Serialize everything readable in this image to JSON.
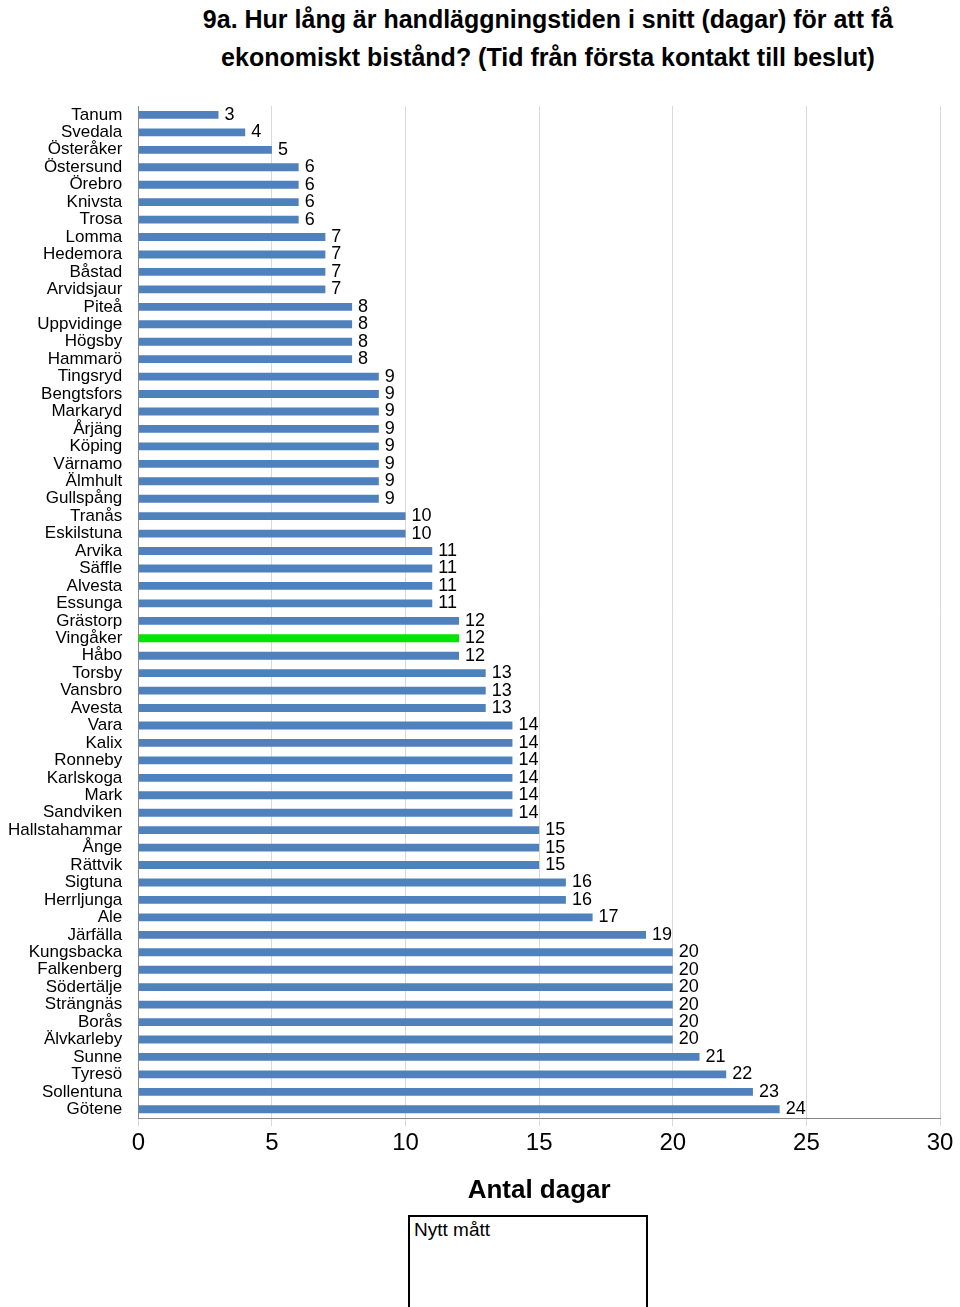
{
  "chart_data": {
    "type": "bar",
    "orientation": "horizontal",
    "title": "9a. Hur lång är handläggningstiden i snitt (dagar) för att få ekonomiskt bistånd? (Tid från första kontakt till beslut)",
    "x_label": "Antal dagar",
    "annotation": "Nytt mått",
    "categories": [
      "Tanum",
      "Svedala",
      "Österåker",
      "Östersund",
      "Örebro",
      "Knivsta",
      "Trosa",
      "Lomma",
      "Hedemora",
      "Båstad",
      "Arvidsjaur",
      "Piteå",
      "Uppvidinge",
      "Högsby",
      "Hammarö",
      "Tingsryd",
      "Bengtsfors",
      "Markaryd",
      "Årjäng",
      "Köping",
      "Värnamo",
      "Älmhult",
      "Gullspång",
      "Tranås",
      "Eskilstuna",
      "Arvika",
      "Säffle",
      "Alvesta",
      "Essunga",
      "Grästorp",
      "Vingåker",
      "Håbo",
      "Torsby",
      "Vansbro",
      "Avesta",
      "Vara",
      "Kalix",
      "Ronneby",
      "Karlskoga",
      "Mark",
      "Sandviken",
      "Hallstahammar",
      "Ånge",
      "Rättvik",
      "Sigtuna",
      "Herrljunga",
      "Ale",
      "Järfälla",
      "Kungsbacka",
      "Falkenberg",
      "Södertälje",
      "Strängnäs",
      "Borås",
      "Älvkarleby",
      "Sunne",
      "Tyresö",
      "Sollentuna",
      "Götene"
    ],
    "values": [
      3,
      4,
      5,
      6,
      6,
      6,
      6,
      7,
      7,
      7,
      7,
      8,
      8,
      8,
      8,
      9,
      9,
      9,
      9,
      9,
      9,
      9,
      9,
      10,
      10,
      11,
      11,
      11,
      11,
      12,
      12,
      12,
      13,
      13,
      13,
      14,
      14,
      14,
      14,
      14,
      14,
      15,
      15,
      15,
      16,
      16,
      17,
      19,
      20,
      20,
      20,
      20,
      20,
      20,
      21,
      22,
      23,
      24
    ],
    "colors": [
      "#4f81bd",
      "#4f81bd",
      "#4f81bd",
      "#4f81bd",
      "#4f81bd",
      "#4f81bd",
      "#4f81bd",
      "#4f81bd",
      "#4f81bd",
      "#4f81bd",
      "#4f81bd",
      "#4f81bd",
      "#4f81bd",
      "#4f81bd",
      "#4f81bd",
      "#4f81bd",
      "#4f81bd",
      "#4f81bd",
      "#4f81bd",
      "#4f81bd",
      "#4f81bd",
      "#4f81bd",
      "#4f81bd",
      "#4f81bd",
      "#4f81bd",
      "#4f81bd",
      "#4f81bd",
      "#4f81bd",
      "#4f81bd",
      "#4f81bd",
      "#00e600",
      "#4f81bd",
      "#4f81bd",
      "#4f81bd",
      "#4f81bd",
      "#4f81bd",
      "#4f81bd",
      "#4f81bd",
      "#4f81bd",
      "#4f81bd",
      "#4f81bd",
      "#4f81bd",
      "#4f81bd",
      "#4f81bd",
      "#4f81bd",
      "#4f81bd",
      "#4f81bd",
      "#4f81bd",
      "#4f81bd",
      "#4f81bd",
      "#4f81bd",
      "#4f81bd",
      "#4f81bd",
      "#4f81bd",
      "#4f81bd",
      "#4f81bd",
      "#4f81bd",
      "#4f81bd"
    ],
    "xlim": [
      0,
      30
    ],
    "xticks": [
      0,
      5,
      10,
      15,
      20,
      25,
      30
    ],
    "grid": true,
    "data_labels": true
  }
}
